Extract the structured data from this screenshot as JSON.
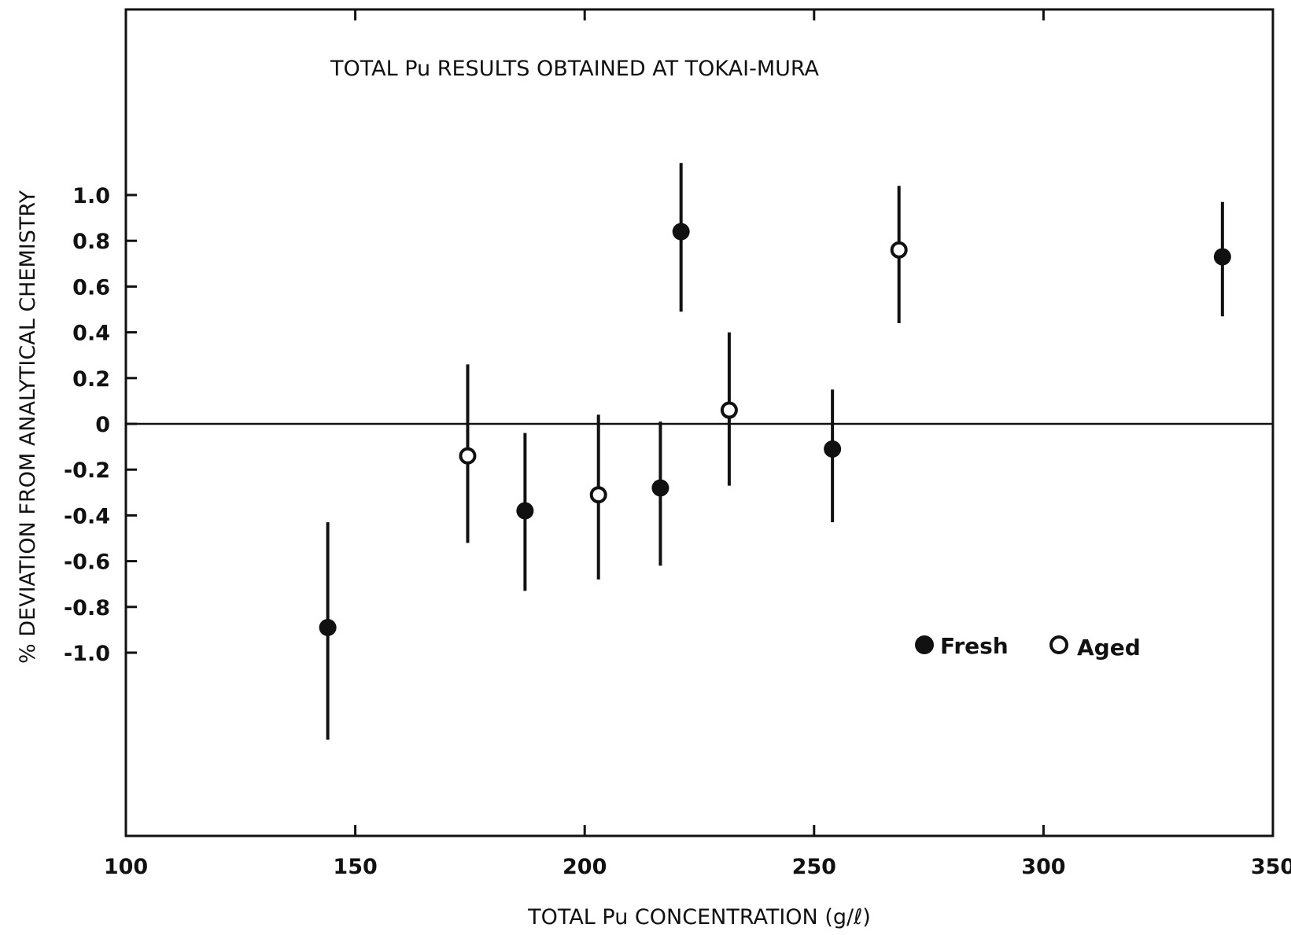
{
  "chart_data": {
    "type": "scatter",
    "title": "TOTAL Pu RESULTS OBTAINED AT TOKAI-MURA",
    "xlabel": "TOTAL Pu CONCENTRATION (g/ℓ)",
    "ylabel": "% DEVIATION FROM ANALYTICAL CHEMISTRY",
    "xlim": [
      100,
      350
    ],
    "ylim": [
      -1.8,
      1.8
    ],
    "x_ticks": [
      100,
      150,
      200,
      250,
      300,
      350
    ],
    "x_tick_labels": [
      "100",
      "150",
      "200",
      "250",
      "300",
      "350"
    ],
    "y_ticks": [
      1.0,
      0.8,
      0.6,
      0.4,
      0.2,
      0,
      -0.2,
      -0.4,
      -0.6,
      -0.8,
      -1.0
    ],
    "y_tick_labels": [
      "1.0",
      "0.8",
      "0.6",
      "0.4",
      "0.2",
      "0",
      "-0.2",
      "-0.4",
      "-0.6",
      "-0.8",
      "-1.0"
    ],
    "zero_line": true,
    "grid": false,
    "legend_position": "lower-right",
    "series": [
      {
        "name": "Fresh",
        "marker": "filled-circle",
        "color": "#111111",
        "points": [
          {
            "x": 144,
            "y": -0.89,
            "err_low": -1.38,
            "err_high": -0.43
          },
          {
            "x": 187,
            "y": -0.38,
            "err_low": -0.73,
            "err_high": -0.04
          },
          {
            "x": 216.5,
            "y": -0.28,
            "err_low": -0.62,
            "err_high": 0.01
          },
          {
            "x": 221,
            "y": 0.84,
            "err_low": 0.49,
            "err_high": 1.14
          },
          {
            "x": 254,
            "y": -0.11,
            "err_low": -0.43,
            "err_high": 0.15
          },
          {
            "x": 339,
            "y": 0.73,
            "err_low": 0.47,
            "err_high": 0.97
          }
        ]
      },
      {
        "name": "Aged",
        "marker": "open-circle",
        "color": "#111111",
        "points": [
          {
            "x": 174.5,
            "y": -0.14,
            "err_low": -0.52,
            "err_high": 0.26
          },
          {
            "x": 203,
            "y": -0.31,
            "err_low": -0.68,
            "err_high": 0.04
          },
          {
            "x": 231.5,
            "y": 0.06,
            "err_low": -0.27,
            "err_high": 0.4
          },
          {
            "x": 268.5,
            "y": 0.76,
            "err_low": 0.44,
            "err_high": 1.04
          }
        ]
      }
    ]
  }
}
